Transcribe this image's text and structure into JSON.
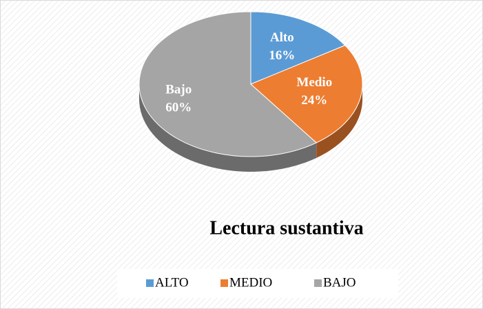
{
  "chart_data": {
    "type": "pie",
    "title": "Lectura sustantiva",
    "categories": [
      "ALTO",
      "MEDIO",
      "BAJO"
    ],
    "data_label_names": [
      "Alto",
      "Medio",
      "Bajo"
    ],
    "values": [
      16,
      24,
      60
    ],
    "value_labels": [
      "16%",
      "24%",
      "60%"
    ],
    "colors": [
      "#5b9bd5",
      "#ed7d31",
      "#a5a5a5"
    ],
    "legend": "bottom"
  }
}
